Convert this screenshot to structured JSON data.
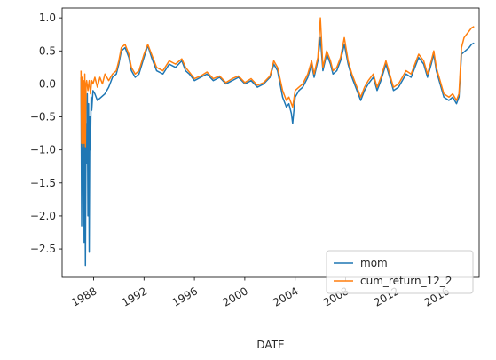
{
  "chart_data": {
    "type": "line",
    "title": "",
    "xlabel": "DATE",
    "ylabel": "",
    "x_ticks": [
      "1988",
      "1992",
      "1996",
      "2000",
      "2004",
      "2008",
      "2012",
      "2016"
    ],
    "y_ticks": [
      "1.0",
      "0.5",
      "0.0",
      "−0.5",
      "−1.0",
      "−1.5",
      "−2.0",
      "−2.5"
    ],
    "xlim": [
      1985.5,
      2018.6
    ],
    "ylim": [
      -2.93,
      1.15
    ],
    "grid": false,
    "legend_position": "lower-right",
    "series": [
      {
        "name": "mom",
        "color": "#1f77b4",
        "points": [
          [
            1987.0,
            0.1
          ],
          [
            1987.05,
            -2.15
          ],
          [
            1987.1,
            -0.5
          ],
          [
            1987.15,
            -1.3
          ],
          [
            1987.2,
            -0.2
          ],
          [
            1987.25,
            -2.4
          ],
          [
            1987.3,
            -0.4
          ],
          [
            1987.35,
            -2.75
          ],
          [
            1987.4,
            -0.6
          ],
          [
            1987.45,
            -1.2
          ],
          [
            1987.5,
            -0.15
          ],
          [
            1987.55,
            -2.0
          ],
          [
            1987.6,
            -0.3
          ],
          [
            1987.65,
            -2.55
          ],
          [
            1987.7,
            -0.5
          ],
          [
            1987.75,
            -1.0
          ],
          [
            1987.8,
            -0.2
          ],
          [
            1987.85,
            -0.4
          ],
          [
            1987.95,
            -0.1
          ],
          [
            1988.1,
            -0.15
          ],
          [
            1988.3,
            -0.25
          ],
          [
            1988.6,
            -0.2
          ],
          [
            1988.9,
            -0.15
          ],
          [
            1989.2,
            -0.05
          ],
          [
            1989.5,
            0.1
          ],
          [
            1989.8,
            0.15
          ],
          [
            1990.0,
            0.3
          ],
          [
            1990.2,
            0.5
          ],
          [
            1990.5,
            0.55
          ],
          [
            1990.8,
            0.4
          ],
          [
            1991.0,
            0.2
          ],
          [
            1991.3,
            0.1
          ],
          [
            1991.6,
            0.15
          ],
          [
            1992.0,
            0.4
          ],
          [
            1992.3,
            0.58
          ],
          [
            1992.6,
            0.4
          ],
          [
            1993.0,
            0.2
          ],
          [
            1993.5,
            0.15
          ],
          [
            1994.0,
            0.3
          ],
          [
            1994.5,
            0.25
          ],
          [
            1995.0,
            0.35
          ],
          [
            1995.3,
            0.2
          ],
          [
            1995.6,
            0.15
          ],
          [
            1996.0,
            0.05
          ],
          [
            1996.5,
            0.1
          ],
          [
            1997.0,
            0.15
          ],
          [
            1997.5,
            0.05
          ],
          [
            1998.0,
            0.1
          ],
          [
            1998.5,
            0.0
          ],
          [
            1999.0,
            0.05
          ],
          [
            1999.5,
            0.1
          ],
          [
            2000.0,
            0.0
          ],
          [
            2000.5,
            0.05
          ],
          [
            2001.0,
            -0.05
          ],
          [
            2001.5,
            0.0
          ],
          [
            2002.0,
            0.1
          ],
          [
            2002.3,
            0.3
          ],
          [
            2002.6,
            0.2
          ],
          [
            2003.0,
            -0.2
          ],
          [
            2003.3,
            -0.35
          ],
          [
            2003.5,
            -0.3
          ],
          [
            2003.7,
            -0.45
          ],
          [
            2003.8,
            -0.6
          ],
          [
            2004.0,
            -0.2
          ],
          [
            2004.3,
            -0.1
          ],
          [
            2004.6,
            -0.05
          ],
          [
            2005.0,
            0.1
          ],
          [
            2005.3,
            0.3
          ],
          [
            2005.5,
            0.1
          ],
          [
            2005.8,
            0.35
          ],
          [
            2006.0,
            0.7
          ],
          [
            2006.2,
            0.2
          ],
          [
            2006.5,
            0.45
          ],
          [
            2006.8,
            0.3
          ],
          [
            2007.0,
            0.15
          ],
          [
            2007.3,
            0.2
          ],
          [
            2007.6,
            0.35
          ],
          [
            2007.9,
            0.6
          ],
          [
            2008.2,
            0.3
          ],
          [
            2008.5,
            0.1
          ],
          [
            2008.8,
            -0.05
          ],
          [
            2009.2,
            -0.25
          ],
          [
            2009.5,
            -0.1
          ],
          [
            2009.8,
            0.0
          ],
          [
            2010.2,
            0.1
          ],
          [
            2010.5,
            -0.1
          ],
          [
            2010.8,
            0.05
          ],
          [
            2011.2,
            0.3
          ],
          [
            2011.5,
            0.1
          ],
          [
            2011.8,
            -0.1
          ],
          [
            2012.2,
            -0.05
          ],
          [
            2012.5,
            0.05
          ],
          [
            2012.8,
            0.15
          ],
          [
            2013.2,
            0.1
          ],
          [
            2013.5,
            0.25
          ],
          [
            2013.8,
            0.4
          ],
          [
            2014.2,
            0.3
          ],
          [
            2014.5,
            0.1
          ],
          [
            2014.8,
            0.3
          ],
          [
            2015.0,
            0.45
          ],
          [
            2015.2,
            0.2
          ],
          [
            2015.5,
            0.0
          ],
          [
            2015.8,
            -0.2
          ],
          [
            2016.2,
            -0.25
          ],
          [
            2016.5,
            -0.2
          ],
          [
            2016.8,
            -0.3
          ],
          [
            2017.0,
            -0.2
          ],
          [
            2017.2,
            0.45
          ],
          [
            2017.5,
            0.5
          ],
          [
            2017.8,
            0.55
          ],
          [
            2018.0,
            0.6
          ],
          [
            2018.2,
            0.62
          ]
        ]
      },
      {
        "name": "cum_return_12_2",
        "color": "#ff7f0e",
        "points": [
          [
            1987.0,
            0.2
          ],
          [
            1987.05,
            -0.9
          ],
          [
            1987.1,
            0.1
          ],
          [
            1987.15,
            -0.95
          ],
          [
            1987.2,
            0.05
          ],
          [
            1987.25,
            -0.9
          ],
          [
            1987.3,
            0.15
          ],
          [
            1987.35,
            -0.95
          ],
          [
            1987.4,
            0.0
          ],
          [
            1987.45,
            0.05
          ],
          [
            1987.55,
            -0.1
          ],
          [
            1987.65,
            0.05
          ],
          [
            1987.75,
            -0.15
          ],
          [
            1987.85,
            0.05
          ],
          [
            1987.95,
            0.0
          ],
          [
            1988.1,
            0.1
          ],
          [
            1988.3,
            -0.05
          ],
          [
            1988.5,
            0.1
          ],
          [
            1988.7,
            0.0
          ],
          [
            1988.9,
            0.15
          ],
          [
            1989.2,
            0.05
          ],
          [
            1989.5,
            0.15
          ],
          [
            1989.8,
            0.2
          ],
          [
            1990.0,
            0.35
          ],
          [
            1990.2,
            0.55
          ],
          [
            1990.5,
            0.6
          ],
          [
            1990.8,
            0.45
          ],
          [
            1991.0,
            0.25
          ],
          [
            1991.3,
            0.15
          ],
          [
            1991.6,
            0.2
          ],
          [
            1992.0,
            0.45
          ],
          [
            1992.3,
            0.6
          ],
          [
            1992.6,
            0.45
          ],
          [
            1993.0,
            0.25
          ],
          [
            1993.5,
            0.2
          ],
          [
            1994.0,
            0.35
          ],
          [
            1994.5,
            0.3
          ],
          [
            1995.0,
            0.38
          ],
          [
            1995.3,
            0.25
          ],
          [
            1995.6,
            0.18
          ],
          [
            1996.0,
            0.08
          ],
          [
            1996.5,
            0.12
          ],
          [
            1997.0,
            0.18
          ],
          [
            1997.5,
            0.08
          ],
          [
            1998.0,
            0.12
          ],
          [
            1998.5,
            0.02
          ],
          [
            1999.0,
            0.08
          ],
          [
            1999.5,
            0.12
          ],
          [
            2000.0,
            0.02
          ],
          [
            2000.5,
            0.08
          ],
          [
            2001.0,
            -0.02
          ],
          [
            2001.5,
            0.02
          ],
          [
            2002.0,
            0.12
          ],
          [
            2002.3,
            0.35
          ],
          [
            2002.6,
            0.25
          ],
          [
            2003.0,
            -0.1
          ],
          [
            2003.3,
            -0.25
          ],
          [
            2003.5,
            -0.2
          ],
          [
            2003.7,
            -0.3
          ],
          [
            2003.8,
            -0.35
          ],
          [
            2004.0,
            -0.1
          ],
          [
            2004.3,
            -0.05
          ],
          [
            2004.6,
            0.0
          ],
          [
            2005.0,
            0.15
          ],
          [
            2005.3,
            0.35
          ],
          [
            2005.5,
            0.15
          ],
          [
            2005.8,
            0.4
          ],
          [
            2006.0,
            1.0
          ],
          [
            2006.2,
            0.25
          ],
          [
            2006.5,
            0.5
          ],
          [
            2006.8,
            0.35
          ],
          [
            2007.0,
            0.2
          ],
          [
            2007.3,
            0.25
          ],
          [
            2007.6,
            0.4
          ],
          [
            2007.9,
            0.7
          ],
          [
            2008.2,
            0.35
          ],
          [
            2008.5,
            0.15
          ],
          [
            2008.8,
            0.0
          ],
          [
            2009.2,
            -0.2
          ],
          [
            2009.5,
            -0.05
          ],
          [
            2009.8,
            0.05
          ],
          [
            2010.2,
            0.15
          ],
          [
            2010.5,
            -0.05
          ],
          [
            2010.8,
            0.1
          ],
          [
            2011.2,
            0.35
          ],
          [
            2011.5,
            0.15
          ],
          [
            2011.8,
            -0.05
          ],
          [
            2012.2,
            0.0
          ],
          [
            2012.5,
            0.1
          ],
          [
            2012.8,
            0.2
          ],
          [
            2013.2,
            0.15
          ],
          [
            2013.5,
            0.3
          ],
          [
            2013.8,
            0.45
          ],
          [
            2014.2,
            0.35
          ],
          [
            2014.5,
            0.15
          ],
          [
            2014.8,
            0.35
          ],
          [
            2015.0,
            0.5
          ],
          [
            2015.2,
            0.25
          ],
          [
            2015.5,
            0.05
          ],
          [
            2015.8,
            -0.15
          ],
          [
            2016.2,
            -0.2
          ],
          [
            2016.5,
            -0.15
          ],
          [
            2016.8,
            -0.25
          ],
          [
            2017.0,
            -0.15
          ],
          [
            2017.2,
            0.55
          ],
          [
            2017.4,
            0.7
          ],
          [
            2017.6,
            0.75
          ],
          [
            2017.8,
            0.8
          ],
          [
            2018.0,
            0.85
          ],
          [
            2018.2,
            0.87
          ]
        ]
      }
    ]
  }
}
